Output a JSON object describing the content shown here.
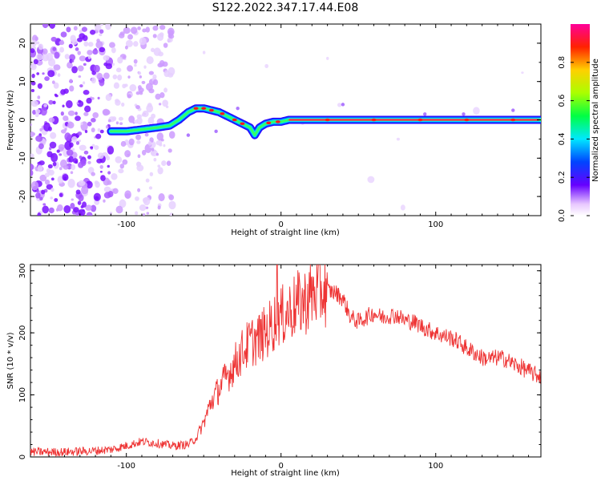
{
  "title": "S122.2022.347.17.44.E08",
  "chart_data": [
    {
      "type": "heatmap",
      "xlabel": "Height of straight line (km)",
      "ylabel": "Frequency (Hz)",
      "xlim": [
        -162,
        168
      ],
      "ylim": [
        -25,
        25
      ],
      "x_ticks": [
        "-100",
        "0",
        "100"
      ],
      "y_ticks": [
        "-20",
        "-10",
        "0",
        "10",
        "20"
      ],
      "colorbar": {
        "label": "Normalized spectral amplitude",
        "ticks": [
          "0.0",
          "0.2",
          "0.4",
          "0.6",
          "0.8"
        ],
        "range": [
          0,
          1
        ]
      },
      "ridge_series": {
        "name": "",
        "x": [
          -110,
          -100,
          -90,
          -80,
          -72,
          -66,
          -60,
          -55,
          -50,
          -45,
          -40,
          -35,
          -30,
          -25,
          -20,
          -17,
          -14,
          -10,
          -5,
          0,
          5,
          10,
          40,
          80,
          120,
          168
        ],
        "y": [
          -3,
          -3,
          -2.5,
          -2,
          -1.5,
          0,
          2,
          3,
          3,
          2.5,
          2,
          1,
          0,
          -1,
          -2,
          -4,
          -2,
          -1,
          -0.5,
          -0.5,
          0,
          0,
          0,
          0,
          0,
          0
        ]
      }
    },
    {
      "type": "line",
      "xlabel": "Height of straight line (km)",
      "ylabel": "SNR (10 * v/v)",
      "xlim": [
        -162,
        168
      ],
      "ylim": [
        0,
        310
      ],
      "x_ticks": [
        "-100",
        "0",
        "100"
      ],
      "y_ticks": [
        "0",
        "100",
        "200",
        "300"
      ],
      "color": "#ee3333",
      "series": [
        {
          "name": "",
          "x": [
            -162,
            -140,
            -120,
            -110,
            -100,
            -90,
            -80,
            -70,
            -60,
            -55,
            -50,
            -45,
            -40,
            -35,
            -30,
            -25,
            -20,
            -15,
            -10,
            -5,
            -2,
            0,
            5,
            10,
            15,
            20,
            25,
            30,
            35,
            40,
            45,
            50,
            55,
            60,
            65,
            70,
            75,
            80,
            85,
            90,
            95,
            100,
            105,
            110,
            115,
            120,
            125,
            130,
            135,
            140,
            145,
            150,
            155,
            160,
            165,
            168
          ],
          "y": [
            8,
            8,
            10,
            12,
            18,
            25,
            22,
            18,
            20,
            30,
            55,
            90,
            110,
            130,
            150,
            170,
            185,
            190,
            200,
            215,
            230,
            225,
            235,
            245,
            250,
            262,
            268,
            268,
            265,
            255,
            225,
            218,
            225,
            232,
            225,
            228,
            228,
            220,
            218,
            212,
            205,
            200,
            195,
            192,
            185,
            175,
            168,
            160,
            158,
            160,
            158,
            150,
            145,
            138,
            132,
            130
          ]
        }
      ]
    }
  ]
}
